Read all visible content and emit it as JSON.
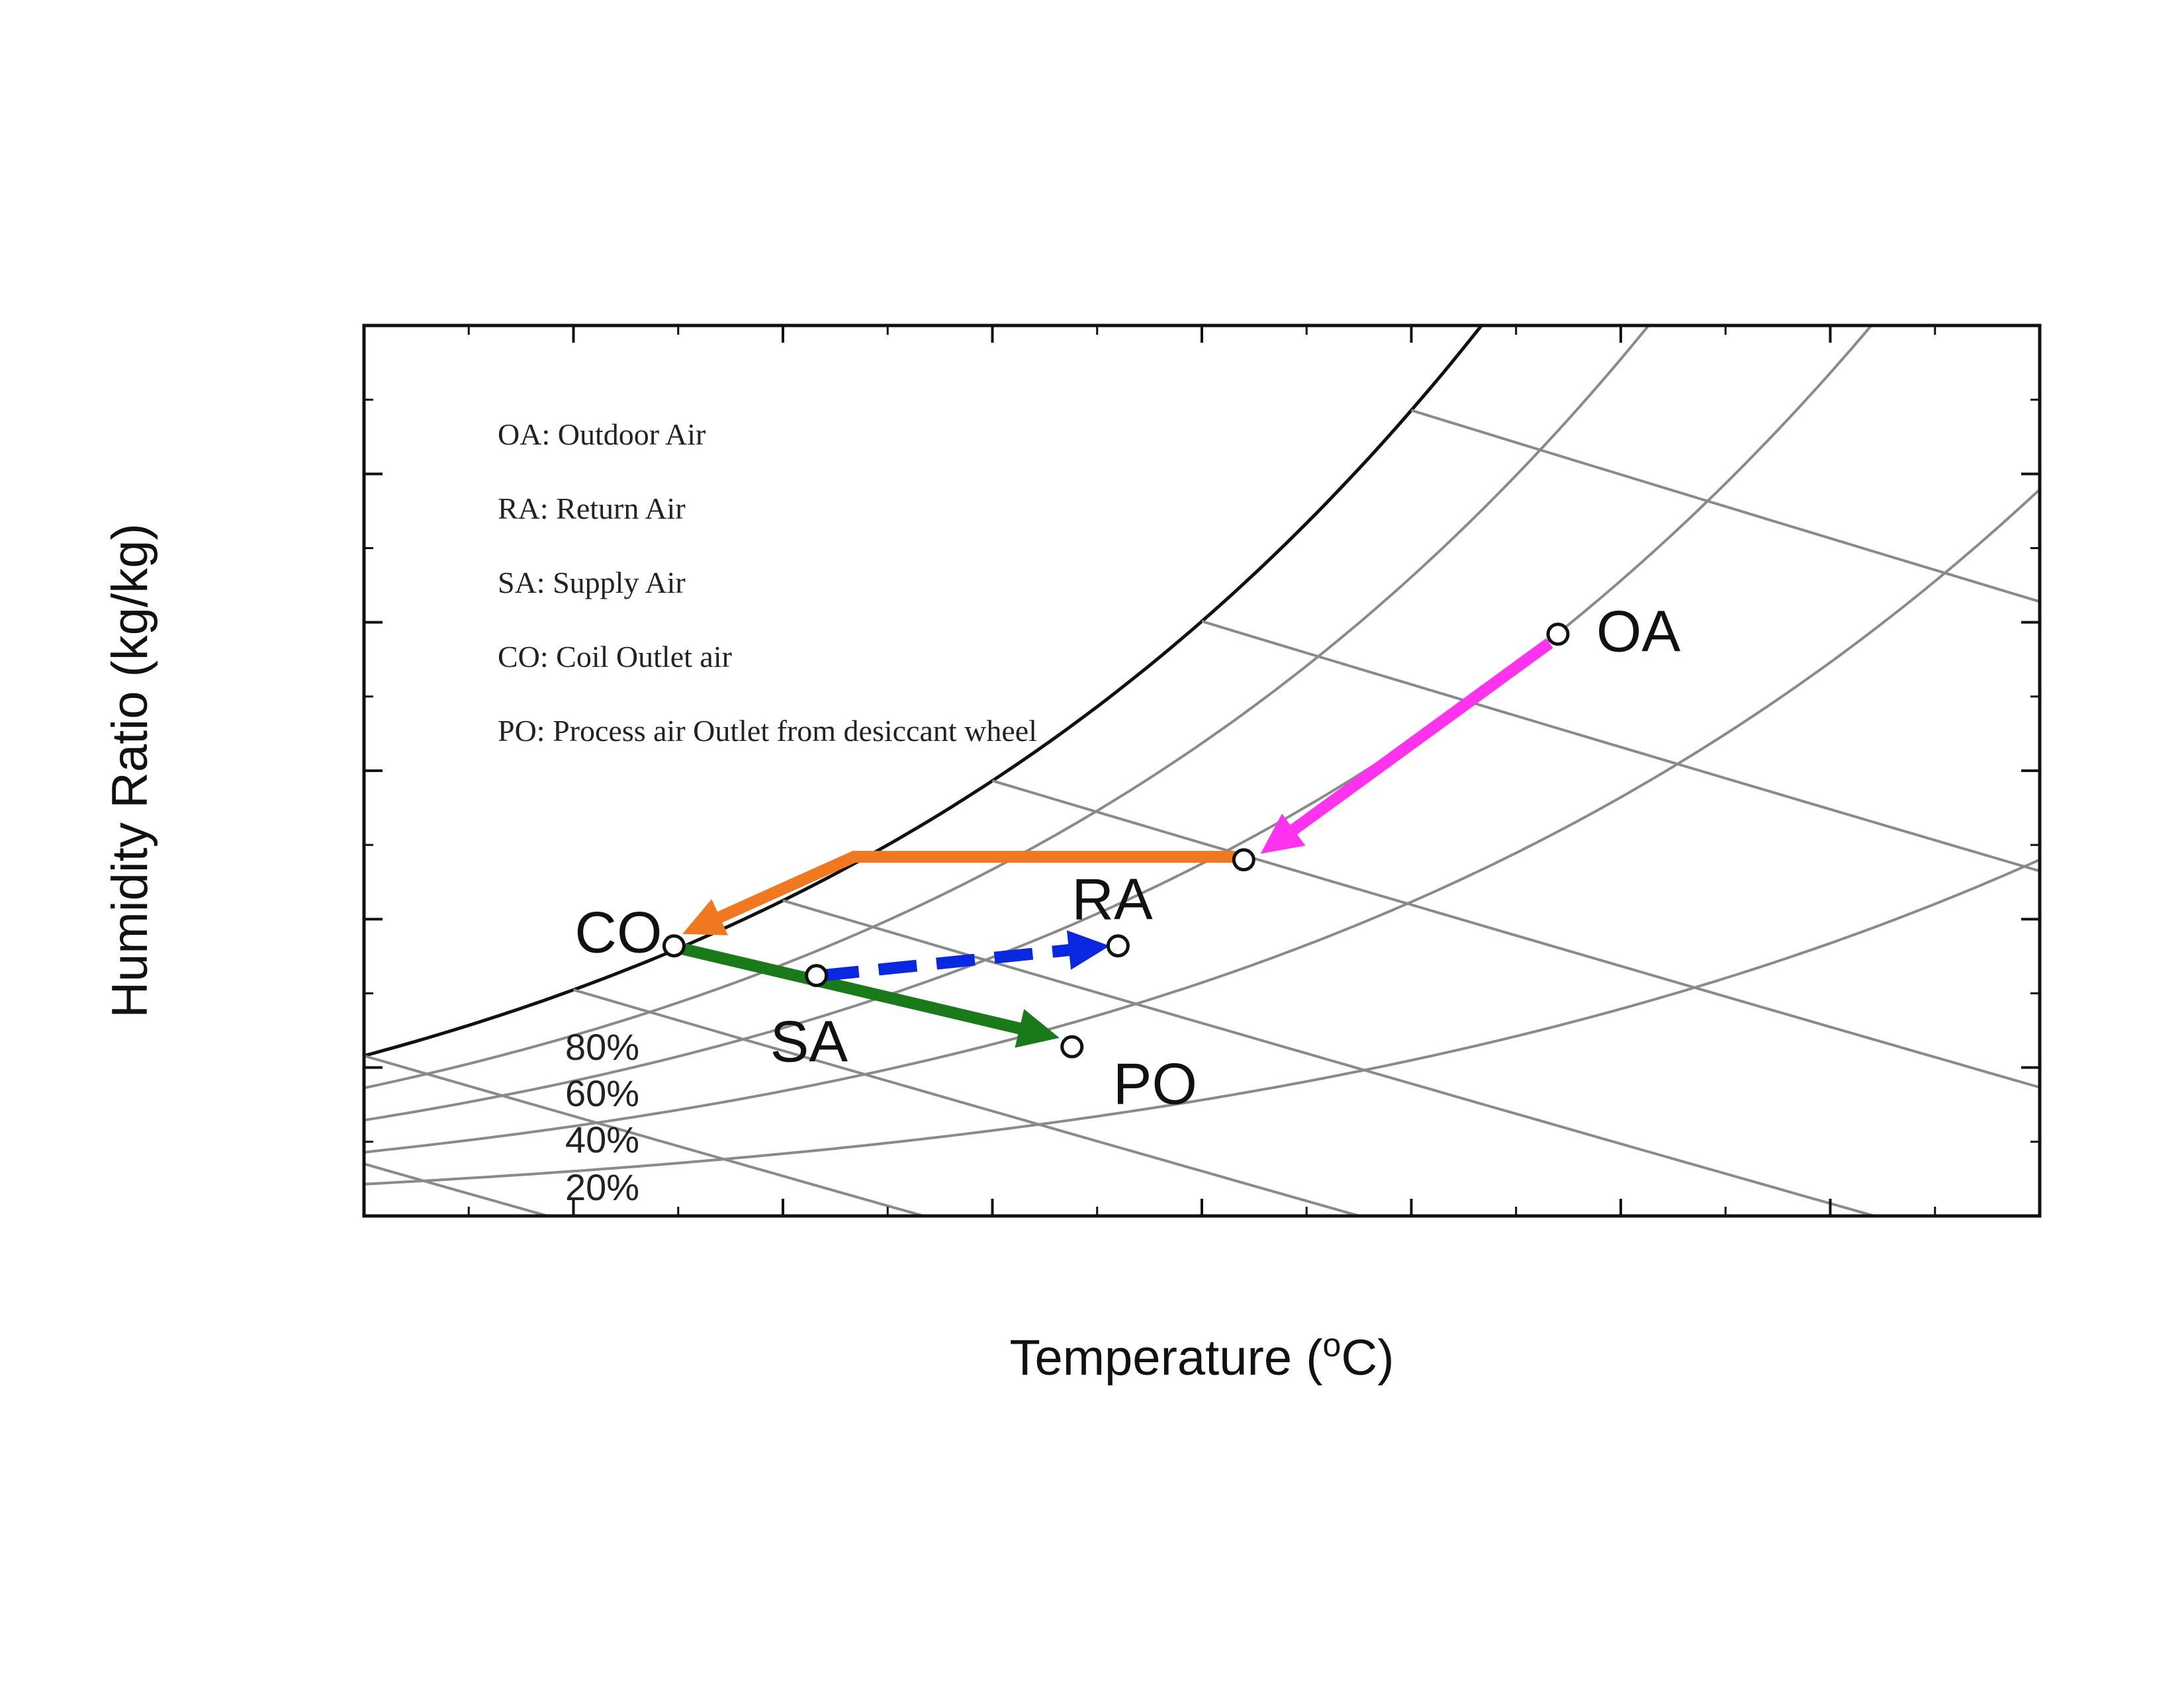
{
  "chart_data": {
    "type": "line",
    "xlabel_base": "Temperature (",
    "xlabel_sup": "o",
    "xlabel_tail": "C)",
    "ylabel": "Humidity Ratio (kg/kg)",
    "xlim": [
      5,
      45
    ],
    "ylim": [
      0.0,
      0.03
    ],
    "x_ticks": [
      "5",
      "10",
      "15",
      "20",
      "25",
      "30",
      "35",
      "40",
      "45"
    ],
    "y_ticks": [
      "0.000",
      "0.005",
      "0.010",
      "0.015",
      "0.020",
      "0.025",
      "0.030"
    ],
    "grid": false,
    "legend_position": "top-left",
    "legend": [
      "OA: Outdoor Air",
      "RA: Return Air",
      "SA: Supply Air",
      "CO: Coil Outlet air",
      "PO: Process air Outlet from desiccant wheel"
    ],
    "rh_labels": [
      "80%",
      "60%",
      "40%",
      "20%"
    ],
    "rh_values": [
      1.0,
      0.8,
      0.6,
      0.4,
      0.2
    ],
    "wetbulb_lines": [
      0,
      5,
      10,
      15,
      20,
      25,
      30
    ],
    "states": [
      {
        "label": "OA",
        "x": 33.5,
        "y": 0.0196
      },
      {
        "label": "RA",
        "x": 23.0,
        "y": 0.0091
      },
      {
        "label": "SA",
        "x": 15.8,
        "y": 0.0081
      },
      {
        "label": "CO",
        "x": 12.4,
        "y": 0.0091
      },
      {
        "label": "PO",
        "x": 21.9,
        "y": 0.0057
      },
      {
        "label": "",
        "x": 26.0,
        "y": 0.012
      }
    ],
    "processes": [
      {
        "name": "",
        "color": "#ff33ee",
        "style": "solid",
        "points": [
          [
            33.3,
            0.0193
          ],
          [
            26.4,
            0.0122
          ]
        ]
      },
      {
        "name": "",
        "color": "#f07820",
        "style": "solid",
        "points": [
          [
            25.8,
            0.0121
          ],
          [
            16.7,
            0.0121
          ],
          [
            12.6,
            0.0095
          ]
        ]
      },
      {
        "name": "",
        "color": "#1a7a1a",
        "style": "solid",
        "points": [
          [
            12.6,
            0.009
          ],
          [
            21.6,
            0.006
          ]
        ]
      },
      {
        "name": "",
        "color": "#0a28e0",
        "style": "dashed",
        "points": [
          [
            15.9,
            0.0081
          ],
          [
            22.8,
            0.0091
          ]
        ]
      }
    ]
  }
}
